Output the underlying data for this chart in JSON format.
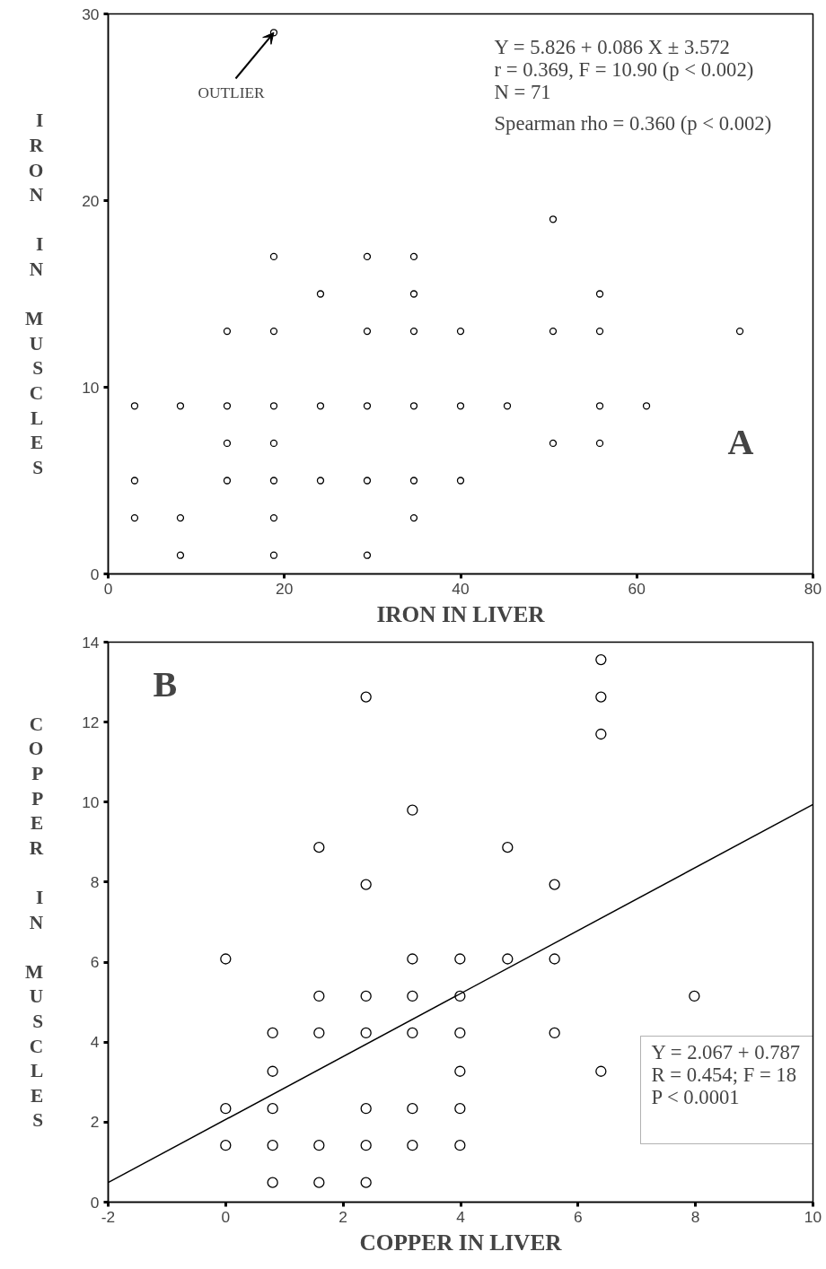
{
  "chart_data": [
    {
      "type": "scatter",
      "xlabel": "IRON IN LIVER",
      "ylabel": "IRON IN MUSCLES",
      "xlim": [
        0,
        80
      ],
      "ylim": [
        0,
        30
      ],
      "xticks": [
        0,
        20,
        40,
        60,
        80
      ],
      "yticks": [
        0,
        10,
        20,
        30
      ],
      "grid": false,
      "series": [
        {
          "color": "#000000",
          "marker": "circle",
          "x": [
            3,
            3,
            3,
            8.2,
            8.2,
            8.2,
            13.5,
            13.5,
            13.5,
            13.5,
            18.8,
            18.8,
            18.8,
            18.8,
            18.8,
            18.8,
            18.8,
            18.8,
            24.1,
            24.1,
            24.1,
            29.4,
            29.4,
            29.4,
            29.4,
            29.4,
            34.7,
            34.7,
            34.7,
            34.7,
            34.7,
            34.7,
            40,
            40,
            40,
            45.3,
            50.5,
            50.5,
            50.5,
            55.8,
            55.8,
            55.8,
            55.8,
            61.1,
            71.7
          ],
          "values": [
            9,
            5,
            3,
            9,
            3,
            1,
            13,
            9,
            7,
            5,
            29,
            17,
            13,
            9,
            7,
            5,
            3,
            1,
            15,
            9,
            5,
            17,
            13,
            9,
            5,
            1,
            17,
            15,
            13,
            9,
            5,
            3,
            13,
            9,
            5,
            9,
            19,
            13,
            7,
            15,
            13,
            9,
            7,
            9,
            13
          ]
        }
      ],
      "annotations": [
        {
          "text": "OUTLIER",
          "x": 18.8,
          "y": 29
        },
        "Y = 5.826 + 0.086 X ± 3.572",
        "r = 0.369, F = 10.90 (p < 0.002)",
        "N = 71",
        "Spearman rho = 0.360 (p < 0.002)",
        "A"
      ]
    },
    {
      "type": "scatter",
      "xlabel": "COPPER IN LIVER",
      "ylabel": "COPPER IN MUSCLES",
      "xlim": [
        -2,
        10
      ],
      "ylim": [
        0,
        14
      ],
      "xticks": [
        -2,
        0,
        2,
        4,
        6,
        8,
        10
      ],
      "yticks": [
        0,
        2,
        4,
        6,
        8,
        10,
        12,
        14
      ],
      "grid": false,
      "series": [
        {
          "color": "#000000",
          "marker": "circle",
          "x": [
            0,
            0,
            0,
            0.8,
            0.8,
            0.8,
            0.8,
            0.8,
            1.59,
            1.59,
            1.59,
            1.59,
            1.59,
            2.39,
            2.39,
            2.39,
            2.39,
            2.39,
            2.39,
            2.39,
            3.18,
            3.18,
            3.18,
            3.18,
            3.18,
            3.18,
            3.99,
            3.99,
            3.99,
            3.99,
            3.99,
            3.99,
            4.8,
            4.8,
            5.6,
            5.6,
            5.6,
            6.39,
            6.39,
            6.39,
            6.39,
            7.98
          ],
          "values": [
            6.08,
            2.34,
            1.42,
            4.23,
            3.27,
            2.34,
            1.42,
            0.49,
            8.87,
            5.15,
            4.23,
            1.42,
            0.49,
            12.63,
            7.94,
            5.15,
            4.23,
            2.34,
            1.42,
            0.49,
            9.8,
            6.08,
            5.15,
            4.23,
            2.34,
            1.42,
            6.08,
            5.15,
            4.23,
            3.27,
            2.34,
            1.42,
            8.87,
            6.08,
            7.94,
            6.08,
            4.23,
            13.56,
            12.63,
            11.7,
            3.27,
            5.15
          ]
        },
        {
          "type": "line",
          "color": "#000000",
          "x": [
            -2,
            10
          ],
          "values": [
            0.49,
            9.94
          ]
        }
      ],
      "annotations": [
        "B",
        "Y = 2.067 + 0.787",
        "R = 0.454; F = 18",
        "P < 0.0001"
      ]
    }
  ]
}
